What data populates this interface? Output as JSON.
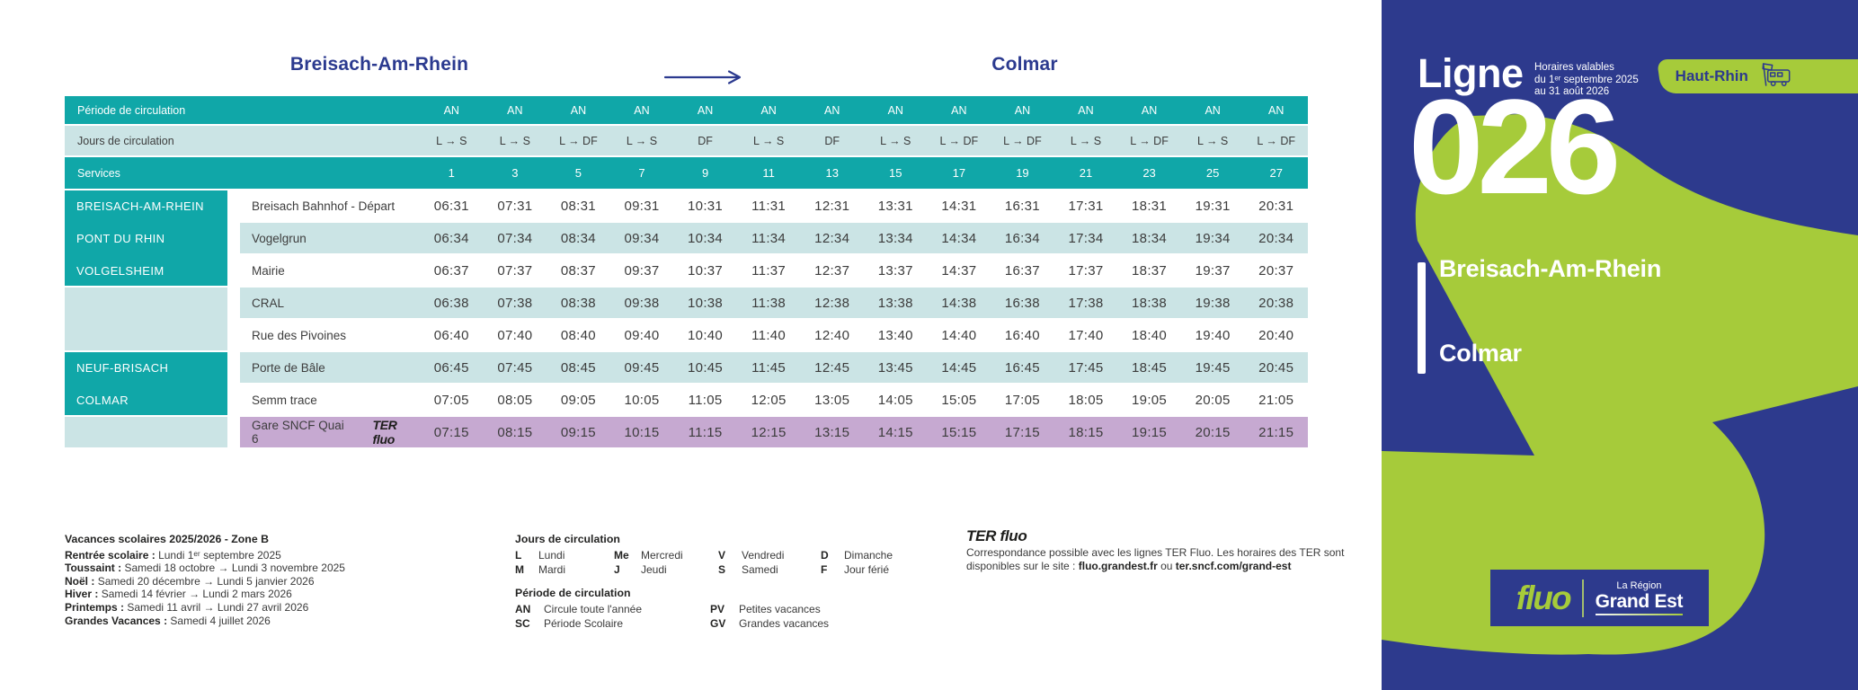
{
  "colors": {
    "teal": "#10a7a8",
    "light_teal": "#cbe4e5",
    "purple": "#c6a9d1",
    "blue": "#2d3a8d",
    "green": "#a6cb3a",
    "title_blue": "#2b3a8f"
  },
  "route_header": {
    "from": "Breisach-Am-Rhein",
    "to": "Colmar"
  },
  "table": {
    "header_rows": [
      {
        "key": "periode",
        "label": "Période de circulation",
        "style": "teal",
        "values": [
          "AN",
          "AN",
          "AN",
          "AN",
          "AN",
          "AN",
          "AN",
          "AN",
          "AN",
          "AN",
          "AN",
          "AN",
          "AN",
          "AN"
        ]
      },
      {
        "key": "jours",
        "label": "Jours de circulation",
        "style": "light",
        "values": [
          "L → S",
          "L → S",
          "L → DF",
          "L → S",
          "DF",
          "L → S",
          "DF",
          "L → S",
          "L → DF",
          "L → DF",
          "L → S",
          "L → DF",
          "L → S",
          "L → DF"
        ]
      },
      {
        "key": "services",
        "label": "Services",
        "style": "teal",
        "values": [
          "1",
          "3",
          "5",
          "7",
          "9",
          "11",
          "13",
          "15",
          "17",
          "19",
          "21",
          "23",
          "25",
          "27"
        ]
      }
    ],
    "commune_blocks": [
      {
        "style": "teal",
        "rows": 3,
        "labels": [
          "BREISACH-AM-RHEIN",
          "PONT DU RHIN",
          "VOLGELSHEIM"
        ]
      },
      {
        "style": "light",
        "rows": 2,
        "labels": []
      },
      {
        "style": "teal",
        "rows": 2,
        "labels": [
          "NEUF-BRISACH",
          "COLMAR"
        ]
      },
      {
        "style": "light",
        "rows": 1,
        "labels": []
      }
    ],
    "rows": [
      {
        "stop": "Breisach Bahnhof - Départ",
        "times": [
          "06:31",
          "07:31",
          "08:31",
          "09:31",
          "10:31",
          "11:31",
          "12:31",
          "13:31",
          "14:31",
          "16:31",
          "17:31",
          "18:31",
          "19:31",
          "20:31"
        ]
      },
      {
        "stop": "Vogelgrun",
        "times": [
          "06:34",
          "07:34",
          "08:34",
          "09:34",
          "10:34",
          "11:34",
          "12:34",
          "13:34",
          "14:34",
          "16:34",
          "17:34",
          "18:34",
          "19:34",
          "20:34"
        ]
      },
      {
        "stop": "Mairie",
        "times": [
          "06:37",
          "07:37",
          "08:37",
          "09:37",
          "10:37",
          "11:37",
          "12:37",
          "13:37",
          "14:37",
          "16:37",
          "17:37",
          "18:37",
          "19:37",
          "20:37"
        ]
      },
      {
        "stop": "CRAL",
        "times": [
          "06:38",
          "07:38",
          "08:38",
          "09:38",
          "10:38",
          "11:38",
          "12:38",
          "13:38",
          "14:38",
          "16:38",
          "17:38",
          "18:38",
          "19:38",
          "20:38"
        ]
      },
      {
        "stop": "Rue des Pivoines",
        "times": [
          "06:40",
          "07:40",
          "08:40",
          "09:40",
          "10:40",
          "11:40",
          "12:40",
          "13:40",
          "14:40",
          "16:40",
          "17:40",
          "18:40",
          "19:40",
          "20:40"
        ]
      },
      {
        "stop": "Porte de Bâle",
        "times": [
          "06:45",
          "07:45",
          "08:45",
          "09:45",
          "10:45",
          "11:45",
          "12:45",
          "13:45",
          "14:45",
          "16:45",
          "17:45",
          "18:45",
          "19:45",
          "20:45"
        ]
      },
      {
        "stop": "Semm trace",
        "times": [
          "07:05",
          "08:05",
          "09:05",
          "10:05",
          "11:05",
          "12:05",
          "13:05",
          "14:05",
          "15:05",
          "17:05",
          "18:05",
          "19:05",
          "20:05",
          "21:05"
        ]
      },
      {
        "stop": "Gare SNCF Quai 6",
        "ter_label": "TER fluo",
        "style": "purple",
        "times": [
          "07:15",
          "08:15",
          "09:15",
          "10:15",
          "11:15",
          "12:15",
          "13:15",
          "14:15",
          "15:15",
          "17:15",
          "18:15",
          "19:15",
          "20:15",
          "21:15"
        ]
      }
    ]
  },
  "legend": {
    "vacances": {
      "title": "Vacances scolaires 2025/2026 - Zone B",
      "lines": [
        {
          "label": "Rentrée scolaire :",
          "text": "Lundi 1ᵉʳ septembre 2025"
        },
        {
          "label": "Toussaint :",
          "text": "Samedi 18 octobre → Lundi 3 novembre 2025"
        },
        {
          "label": "Noël :",
          "text": "Samedi 20 décembre → Lundi 5 janvier 2026"
        },
        {
          "label": "Hiver :",
          "text": "Samedi 14 février → Lundi 2 mars 2026"
        },
        {
          "label": "Printemps :",
          "text": "Samedi 11 avril → Lundi 27 avril 2026"
        },
        {
          "label": "Grandes Vacances :",
          "text": "Samedi 4 juillet 2026"
        }
      ]
    },
    "jours": {
      "title": "Jours de circulation",
      "items": [
        {
          "k": "L",
          "v": "Lundi"
        },
        {
          "k": "M",
          "v": "Mardi"
        },
        {
          "k": "Me",
          "v": "Mercredi"
        },
        {
          "k": "J",
          "v": "Jeudi"
        },
        {
          "k": "V",
          "v": "Vendredi"
        },
        {
          "k": "S",
          "v": "Samedi"
        },
        {
          "k": "D",
          "v": "Dimanche"
        },
        {
          "k": "F",
          "v": "Jour férié"
        }
      ]
    },
    "periode": {
      "title": "Période de circulation",
      "items": [
        {
          "k": "AN",
          "v": "Circule toute l'année"
        },
        {
          "k": "SC",
          "v": "Période Scolaire"
        },
        {
          "k": "PV",
          "v": "Petites vacances"
        },
        {
          "k": "GV",
          "v": "Grandes vacances"
        }
      ]
    },
    "ter": {
      "logo": "TER fluo",
      "line1": "Correspondance possible avec les lignes TER Fluo. Les horaires des TER sont",
      "line2_prefix": "disponibles sur le site : ",
      "site1": "fluo.grandest.fr",
      "or": " ou ",
      "site2": "ter.sncf.com/grand-est"
    }
  },
  "panel": {
    "ligne": "Ligne",
    "number": "026",
    "validity": [
      "Horaires valables",
      "du 1ᵉʳ septembre 2025",
      "au 31 août 2026"
    ],
    "badge": "Haut-Rhin",
    "origin": "Breisach-Am-Rhein",
    "destination": "Colmar",
    "logo": {
      "fluo": "fluo",
      "region_line1": "La Région",
      "region_line2": "Grand Est"
    }
  }
}
